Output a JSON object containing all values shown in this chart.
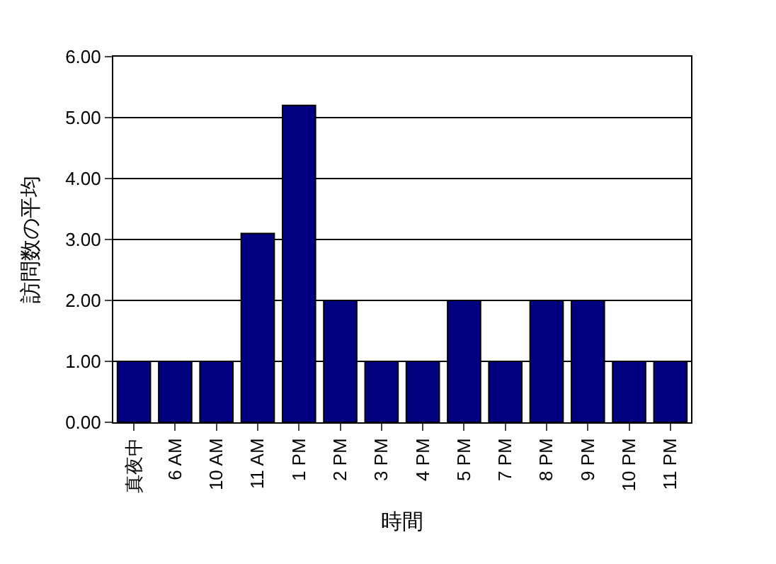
{
  "chart_data": {
    "type": "bar",
    "xlabel": "時間",
    "ylabel": "訪問数の平均",
    "categories": [
      "真夜中",
      "6 AM",
      "10 AM",
      "11 AM",
      "1 PM",
      "2 PM",
      "3 PM",
      "4 PM",
      "5 PM",
      "7 PM",
      "8 PM",
      "9 PM",
      "10 PM",
      "11 PM"
    ],
    "values": [
      1,
      1,
      1,
      3.1,
      5.2,
      2,
      1,
      1,
      2,
      1,
      2,
      2,
      1,
      1
    ],
    "color": "#000080",
    "ylim": [
      0,
      6
    ],
    "yticks": [
      {
        "value": 0,
        "label": "0.00"
      },
      {
        "value": 1,
        "label": "1.00"
      },
      {
        "value": 2,
        "label": "2.00"
      },
      {
        "value": 3,
        "label": "3.00"
      },
      {
        "value": 4,
        "label": "4.00"
      },
      {
        "value": 5,
        "label": "5.00"
      },
      {
        "value": 6,
        "label": "6.00"
      }
    ],
    "grid": "y",
    "legend": false
  }
}
